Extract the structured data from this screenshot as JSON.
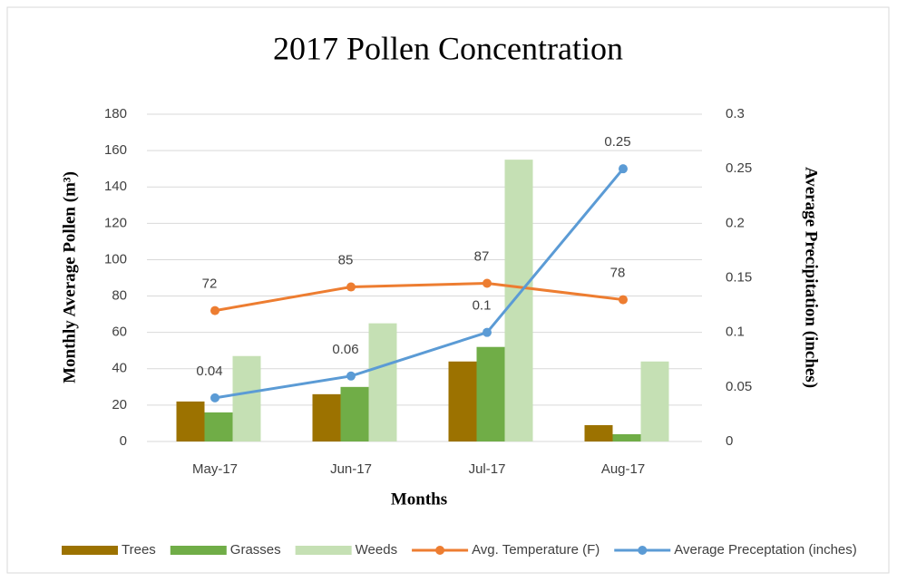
{
  "chart_data": {
    "type": "bar",
    "title": "2017 Pollen Concentration",
    "x_label": "Months",
    "y_label": "Monthly Average Pollen (m³)",
    "y2_label": "Average Precipitation (inches)",
    "categories": [
      "May-17",
      "Jun-17",
      "Jul-17",
      "Aug-17"
    ],
    "series": [
      {
        "name": "Trees",
        "type": "bar",
        "color": "#9c7200",
        "values": [
          22,
          26,
          44,
          9
        ]
      },
      {
        "name": "Grasses",
        "type": "bar",
        "color": "#70ad47",
        "values": [
          16,
          30,
          52,
          4
        ]
      },
      {
        "name": "Weeds",
        "type": "bar",
        "color": "#c5e0b4",
        "values": [
          47,
          65,
          155,
          44
        ]
      },
      {
        "name": "Avg. Temperature (F)",
        "type": "line",
        "color": "#ed7d31",
        "values": [
          72,
          85,
          87,
          78
        ],
        "data_labels": true
      },
      {
        "name": "Average Preceptation (inches)",
        "type": "line",
        "axis": "y2",
        "color": "#5b9bd5",
        "values": [
          0.04,
          0.06,
          0.1,
          0.25
        ],
        "data_labels": true
      }
    ],
    "ylim": [
      0,
      180
    ],
    "yticks": [
      0,
      20,
      40,
      60,
      80,
      100,
      120,
      140,
      160,
      180
    ],
    "y2lim": [
      0,
      0.3
    ],
    "y2ticks": [
      0,
      0.05,
      0.1,
      0.15,
      0.2,
      0.25,
      0.3
    ],
    "grid": true,
    "legend": "bottom"
  }
}
